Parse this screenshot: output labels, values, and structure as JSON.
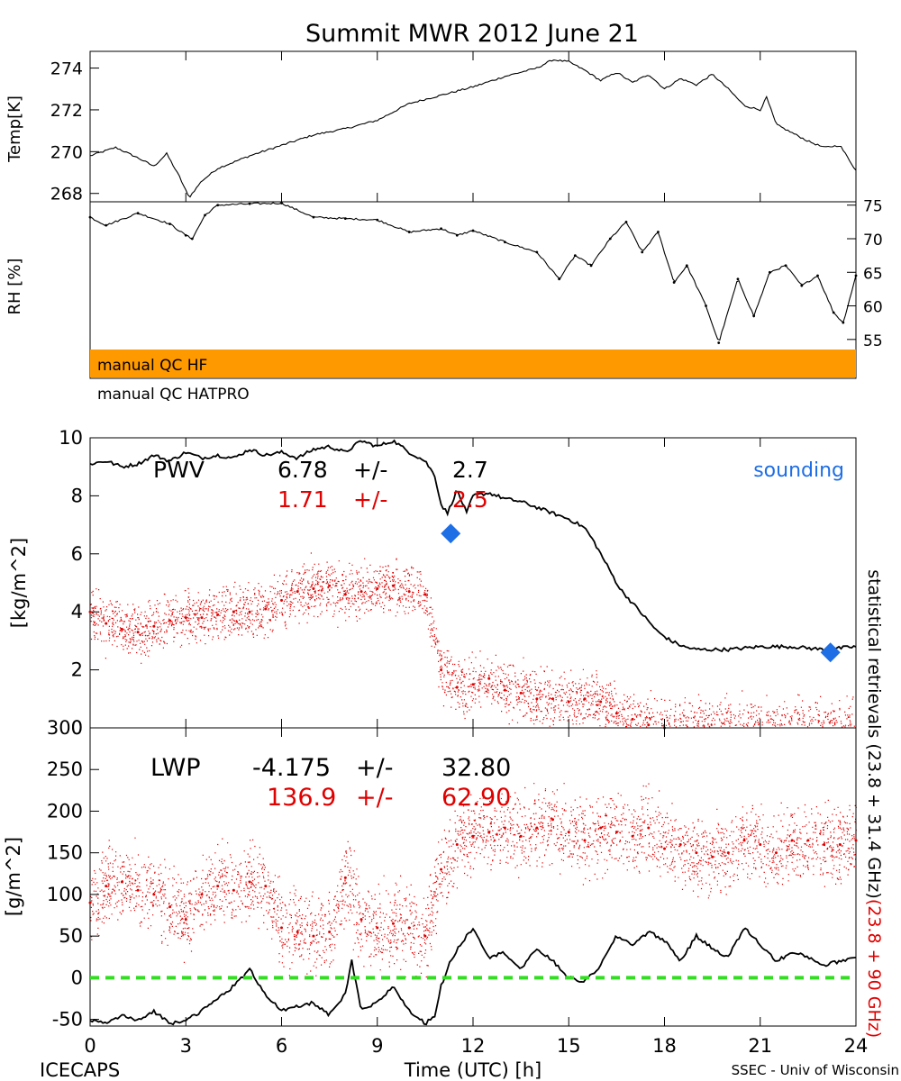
{
  "title": "Summit MWR 2012 June 21",
  "footer": {
    "left": "ICECAPS",
    "center": "Time (UTC) [h]",
    "right": "SSEC - Univ of Wisconsin"
  },
  "right_labels": {
    "black": "statistical retrievals (23.8 + 31.4 GHz)",
    "red": "(23.8 + 90 GHz)"
  },
  "qc_labels": {
    "hf": "manual QC HF",
    "hatpro": "manual QC HATPRO"
  },
  "colors": {
    "black": "#000000",
    "red": "#e00000",
    "blue": "#1e6ee6",
    "green": "#33dd22",
    "qc_orange": "#ff9900"
  },
  "chart_data": [
    {
      "type": "line",
      "ylabel": "Temp[K]",
      "x_ticks": [
        0,
        3,
        6,
        9,
        12,
        15,
        18,
        21,
        24
      ],
      "xlim": [
        0,
        24
      ],
      "ylim": [
        267.6,
        274.8
      ],
      "y_ticks": [
        268,
        270,
        272,
        274
      ],
      "series": [
        {
          "color": "black",
          "x": [
            0,
            0.8,
            1.5,
            2.0,
            2.4,
            2.8,
            3.1,
            3.5,
            4.0,
            5.0,
            6.0,
            7.0,
            8.0,
            9.0,
            10.0,
            11.0,
            12.0,
            13.0,
            14.0,
            14.5,
            15.0,
            15.5,
            16.0,
            16.5,
            17.0,
            17.5,
            18.0,
            18.5,
            19.0,
            19.5,
            20.0,
            20.5,
            21.0,
            21.2,
            21.5,
            22.0,
            22.5,
            23.0,
            23.5,
            24.0
          ],
          "y": [
            269.8,
            270.2,
            269.7,
            269.3,
            269.9,
            268.8,
            267.8,
            268.6,
            269.2,
            269.8,
            270.3,
            270.8,
            271.1,
            271.5,
            272.3,
            272.7,
            273.1,
            273.6,
            274.0,
            274.4,
            274.3,
            273.9,
            273.4,
            273.8,
            273.3,
            273.7,
            273.0,
            273.5,
            273.2,
            273.7,
            273.0,
            272.2,
            272.0,
            272.6,
            271.3,
            270.9,
            270.5,
            270.2,
            270.3,
            269.1
          ]
        }
      ]
    },
    {
      "type": "scatter",
      "ylabel": "RH [%]",
      "xlim": [
        0,
        24
      ],
      "ylim": [
        53.5,
        75.5
      ],
      "y_ticks": [
        55,
        60,
        65,
        70,
        75
      ],
      "series": [
        {
          "color": "black",
          "x": [
            0,
            0.5,
            1.5,
            2.5,
            3.0,
            3.2,
            3.6,
            4.0,
            5.0,
            6.0,
            7.0,
            8.0,
            9.0,
            10.0,
            11.0,
            11.5,
            12.0,
            13.0,
            14.0,
            14.7,
            15.2,
            15.7,
            16.3,
            16.8,
            17.3,
            17.8,
            18.3,
            18.7,
            19.3,
            19.7,
            20.3,
            20.8,
            21.3,
            21.8,
            22.3,
            22.8,
            23.3,
            23.6,
            24.0
          ],
          "y": [
            73.2,
            72.0,
            73.8,
            72.2,
            70.5,
            70.0,
            73.5,
            75.0,
            75.2,
            75.3,
            73.2,
            73.0,
            72.8,
            71.0,
            71.5,
            70.5,
            71.2,
            69.5,
            68.0,
            64.0,
            67.5,
            66.0,
            70.0,
            72.5,
            68.0,
            71.0,
            63.5,
            66.0,
            60.0,
            54.5,
            64.0,
            58.5,
            65.0,
            66.0,
            63.0,
            64.5,
            59.0,
            57.5,
            64.5
          ]
        }
      ]
    },
    {
      "type": "line+scatter",
      "ylabel": "[kg/m^2]",
      "xlim": [
        0,
        24
      ],
      "ylim": [
        0,
        10
      ],
      "y_ticks": [
        0,
        2,
        4,
        6,
        8,
        10
      ],
      "annotation_label": "PWV",
      "stats_black": {
        "mean": "6.78",
        "pm": "+/-",
        "std": "2.7"
      },
      "stats_red": {
        "mean": "1.71",
        "pm": "+/-",
        "std": "2.5"
      },
      "sounding_label": "sounding",
      "sounding_points": {
        "x": [
          11.3,
          23.2
        ],
        "y": [
          6.7,
          2.6
        ]
      },
      "series": [
        {
          "color": "black",
          "x": [
            0,
            0.5,
            1.0,
            1.5,
            2.0,
            2.5,
            3.0,
            3.5,
            4.0,
            4.5,
            5.0,
            5.5,
            6.0,
            6.5,
            7.0,
            7.5,
            8.0,
            8.5,
            9.0,
            9.5,
            10.0,
            10.5,
            10.8,
            11.0,
            11.2,
            11.5,
            11.8,
            12.0,
            12.5,
            13.0,
            13.5,
            14.0,
            14.5,
            15.0,
            15.5,
            15.8,
            16.2,
            16.6,
            17.0,
            17.4,
            17.8,
            18.2,
            18.6,
            19.0,
            19.5,
            20.0,
            21.0,
            22.0,
            23.0,
            24.0
          ],
          "y": [
            9.1,
            9.2,
            9.0,
            9.1,
            9.4,
            9.2,
            9.5,
            9.3,
            9.4,
            9.3,
            9.6,
            9.4,
            9.5,
            9.3,
            9.6,
            9.7,
            9.5,
            9.9,
            9.7,
            9.9,
            9.5,
            9.2,
            8.7,
            7.7,
            7.4,
            8.2,
            7.4,
            8.0,
            8.1,
            7.9,
            7.8,
            7.6,
            7.4,
            7.2,
            6.9,
            6.4,
            5.6,
            4.8,
            4.3,
            3.8,
            3.3,
            3.0,
            2.8,
            2.7,
            2.7,
            2.7,
            2.8,
            2.8,
            2.7,
            2.8
          ]
        },
        {
          "color": "red",
          "scatter": true,
          "x": [
            0,
            0.5,
            1.0,
            1.5,
            2.0,
            2.5,
            3.0,
            3.5,
            4.0,
            4.5,
            5.0,
            5.5,
            6.0,
            6.5,
            7.0,
            7.5,
            8.0,
            8.5,
            9.0,
            9.5,
            10.0,
            10.5,
            11.0,
            11.5,
            12.0,
            12.5,
            13.0,
            13.5,
            14.0,
            14.5,
            15.0,
            15.5,
            16.0,
            16.5,
            17.0,
            17.5,
            18.0
          ],
          "y": [
            4.0,
            3.6,
            3.4,
            3.3,
            3.5,
            3.7,
            3.8,
            3.8,
            3.9,
            4.0,
            4.0,
            4.1,
            4.4,
            4.7,
            4.8,
            4.9,
            4.6,
            4.7,
            4.8,
            4.9,
            4.7,
            4.6,
            2.0,
            1.4,
            1.5,
            1.7,
            1.3,
            1.2,
            1.0,
            1.0,
            0.9,
            1.0,
            0.9,
            0.5,
            0.3,
            0.1,
            0.0
          ]
        }
      ]
    },
    {
      "type": "line+scatter",
      "ylabel": "[g/m^2]",
      "xlim": [
        0,
        24
      ],
      "ylim": [
        -58,
        300
      ],
      "y_ticks": [
        -50,
        0,
        50,
        100,
        150,
        200,
        250,
        300
      ],
      "x_ticks": [
        0,
        3,
        6,
        9,
        12,
        15,
        18,
        21,
        24
      ],
      "annotation_label": "LWP",
      "stats_black": {
        "mean": "-4.175",
        "pm": "+/-",
        "std": "32.80"
      },
      "stats_red": {
        "mean": "136.9",
        "pm": "+/-",
        "std": "62.90"
      },
      "reference_line": {
        "y": 0,
        "color": "green",
        "style": "dashed"
      },
      "series": [
        {
          "color": "black",
          "x": [
            0,
            0.5,
            1.0,
            1.5,
            2.0,
            2.5,
            3.0,
            3.5,
            4.0,
            4.5,
            5.0,
            5.5,
            6.0,
            6.5,
            7.0,
            7.5,
            8.0,
            8.2,
            8.5,
            9.0,
            9.5,
            10.0,
            10.5,
            10.8,
            11.0,
            11.3,
            11.6,
            12.0,
            12.5,
            13.0,
            13.5,
            14.0,
            14.5,
            15.0,
            15.5,
            16.0,
            16.5,
            17.0,
            17.5,
            18.0,
            18.5,
            19.0,
            19.5,
            20.0,
            20.5,
            21.0,
            21.5,
            22.0,
            22.5,
            23.0,
            23.5,
            24.0
          ],
          "y": [
            -50,
            -55,
            -45,
            -52,
            -40,
            -55,
            -50,
            -40,
            -25,
            -10,
            10,
            -20,
            -40,
            -35,
            -30,
            -45,
            -20,
            20,
            -40,
            -30,
            -10,
            -40,
            -55,
            -45,
            -10,
            20,
            40,
            60,
            25,
            30,
            10,
            35,
            20,
            0,
            -5,
            15,
            50,
            40,
            55,
            45,
            20,
            50,
            35,
            25,
            60,
            40,
            20,
            30,
            25,
            15,
            20,
            25
          ]
        },
        {
          "color": "red",
          "scatter": true,
          "x": [
            0,
            0.5,
            1.0,
            1.5,
            2.0,
            2.5,
            3.0,
            3.5,
            4.0,
            4.5,
            5.0,
            5.5,
            6.0,
            6.5,
            7.0,
            7.5,
            8.0,
            8.5,
            9.0,
            9.5,
            10.0,
            10.5,
            11.0,
            11.5,
            12.0,
            12.5,
            13.0,
            13.5,
            14.0,
            14.5,
            15.0,
            15.5,
            16.0,
            16.5,
            17.0,
            17.5,
            18.0,
            18.5,
            19.0,
            19.5,
            20.0,
            20.5,
            21.0,
            21.5,
            22.0,
            22.5,
            23.0,
            23.5,
            24.0
          ],
          "y": [
            90,
            110,
            115,
            105,
            100,
            85,
            70,
            100,
            110,
            105,
            115,
            110,
            60,
            55,
            50,
            55,
            120,
            70,
            60,
            65,
            60,
            50,
            130,
            160,
            170,
            175,
            180,
            170,
            180,
            190,
            175,
            165,
            180,
            175,
            170,
            180,
            155,
            160,
            150,
            145,
            150,
            165,
            160,
            150,
            165,
            165,
            160,
            160,
            165
          ]
        }
      ]
    }
  ]
}
